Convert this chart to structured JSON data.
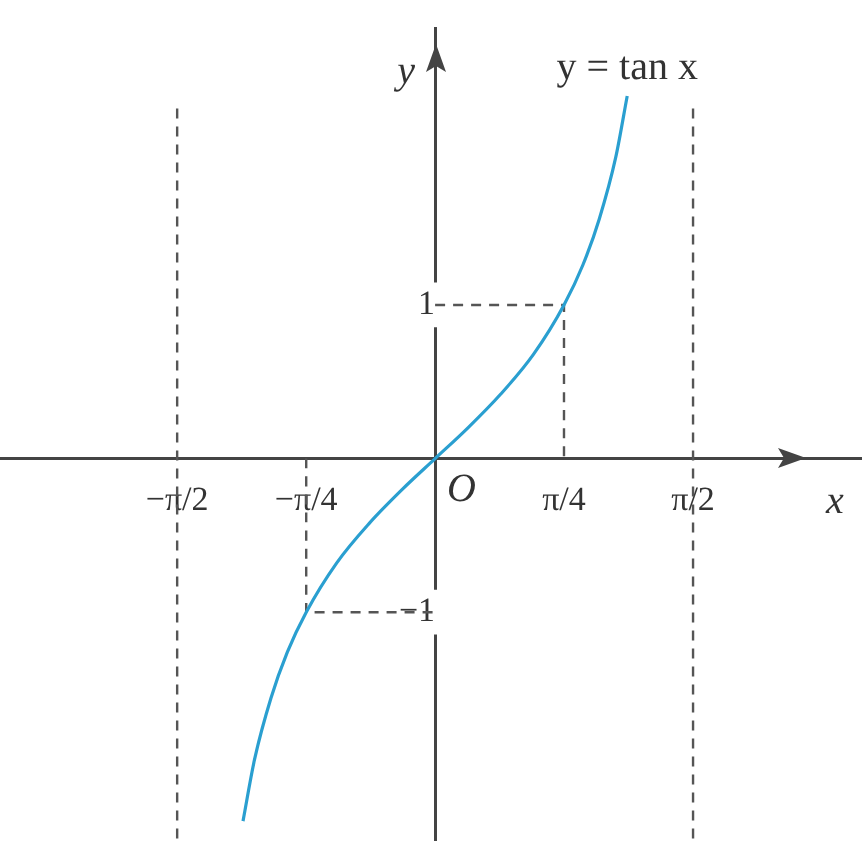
{
  "chart_data": {
    "type": "line",
    "xlabel": "x",
    "ylabel": "y",
    "xlim": [
      -2.65,
      2.6
    ],
    "ylim": [
      -2.48,
      2.8
    ],
    "xticks": [
      {
        "value": -1.571,
        "label": "−π/2"
      },
      {
        "value": -0.785,
        "label": "−π/4"
      },
      {
        "value": 0.785,
        "label": "π/4"
      },
      {
        "value": 1.571,
        "label": "π/2"
      }
    ],
    "yticks": [
      {
        "value": -1,
        "label": "−1"
      },
      {
        "value": 1,
        "label": "1"
      }
    ],
    "grid": false,
    "legend": false,
    "marker": "none",
    "series": [
      {
        "name": "y = tan x",
        "color": "#2a9fd0",
        "line_style": "solid",
        "x": [
          -1.17,
          -1.1,
          -1.0,
          -0.9,
          -0.785,
          -0.6,
          -0.4,
          -0.2,
          0,
          0.2,
          0.4,
          0.6,
          0.785,
          0.9,
          1.0,
          1.1,
          1.17
        ],
        "values": [
          -2.36,
          -1.96,
          -1.56,
          -1.26,
          -1.0,
          -0.68,
          -0.42,
          -0.2,
          0,
          0.2,
          0.42,
          0.68,
          1.0,
          1.26,
          1.56,
          1.96,
          2.36
        ]
      },
      {
        "color": "#555555",
        "line_style": "dashed",
        "x": [
          0,
          0.785,
          0.785
        ],
        "values": [
          1,
          1,
          0
        ]
      },
      {
        "color": "#555555",
        "line_style": "dashed",
        "x": [
          -0.785,
          -0.785,
          0
        ],
        "values": [
          0,
          -1,
          -1
        ]
      }
    ],
    "ref_lines": [
      {
        "axis": "x",
        "value": -1.571,
        "line_style": "dashed",
        "color": "#555555"
      },
      {
        "axis": "x",
        "value": 1.571,
        "line_style": "dashed",
        "color": "#555555"
      }
    ],
    "annotations": [
      {
        "text": "O",
        "x": 0,
        "y": 0
      }
    ]
  }
}
